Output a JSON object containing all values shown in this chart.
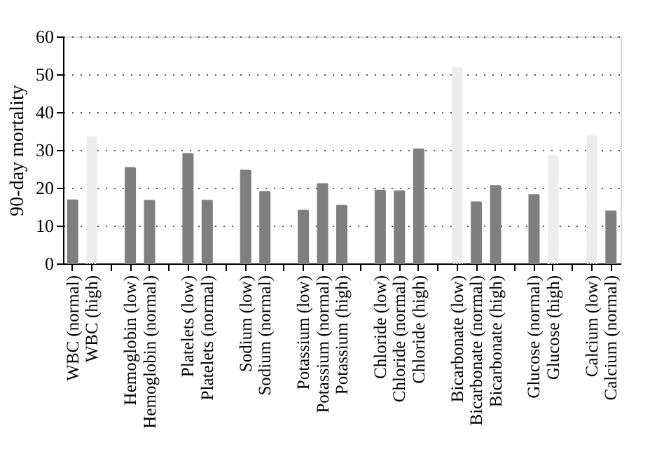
{
  "chart_data": {
    "type": "bar",
    "ylabel": "90-day mortality",
    "categories": [
      "WBC (normal)",
      "WBC (high)",
      null,
      "Hemoglobin (low)",
      "Hemoglobin (normal)",
      null,
      "Platelets (low)",
      "Platelets (normal)",
      null,
      "Sodium (low)",
      "Sodium (normal)",
      null,
      "Potassium (low)",
      "Potassium (normal)",
      "Potassium (high)",
      null,
      "Chloride (low)",
      "Chloride (normal)",
      "Chloride (high)",
      null,
      "Bicarbonate (low)",
      "Bicarbonate (normal)",
      "Bicarbonate (high)",
      null,
      "Glucose (normal)",
      "Glucose (high)",
      null,
      "Calcium (low)",
      "Calcium (normal)"
    ],
    "values": [
      16.7,
      33.5,
      null,
      25.3,
      16.6,
      null,
      29,
      16.6,
      null,
      24.6,
      18.9,
      null,
      14,
      21,
      15.3,
      null,
      19.3,
      19.1,
      30.2,
      null,
      51.8,
      16.2,
      20.5,
      null,
      18.1,
      28.5,
      null,
      33.8,
      13.8
    ],
    "colors": [
      "#7f7f7f",
      "#ececec",
      "#7f7f7f",
      "#7f7f7f",
      "#7f7f7f",
      "#7f7f7f",
      "#7f7f7f",
      "#7f7f7f",
      "#7f7f7f",
      "#7f7f7f",
      "#7f7f7f",
      "#7f7f7f",
      "#7f7f7f",
      "#7f7f7f",
      "#7f7f7f",
      "#7f7f7f",
      "#7f7f7f",
      "#7f7f7f",
      "#7f7f7f",
      "#7f7f7f",
      "#ececec",
      "#7f7f7f",
      "#7f7f7f",
      "#7f7f7f",
      "#7f7f7f",
      "#ececec",
      "#7f7f7f",
      "#ececec",
      "#7f7f7f"
    ],
    "ylim": [
      0,
      60
    ],
    "yticks": [
      0,
      10,
      20,
      30,
      40,
      50,
      60
    ],
    "grid": "y"
  }
}
